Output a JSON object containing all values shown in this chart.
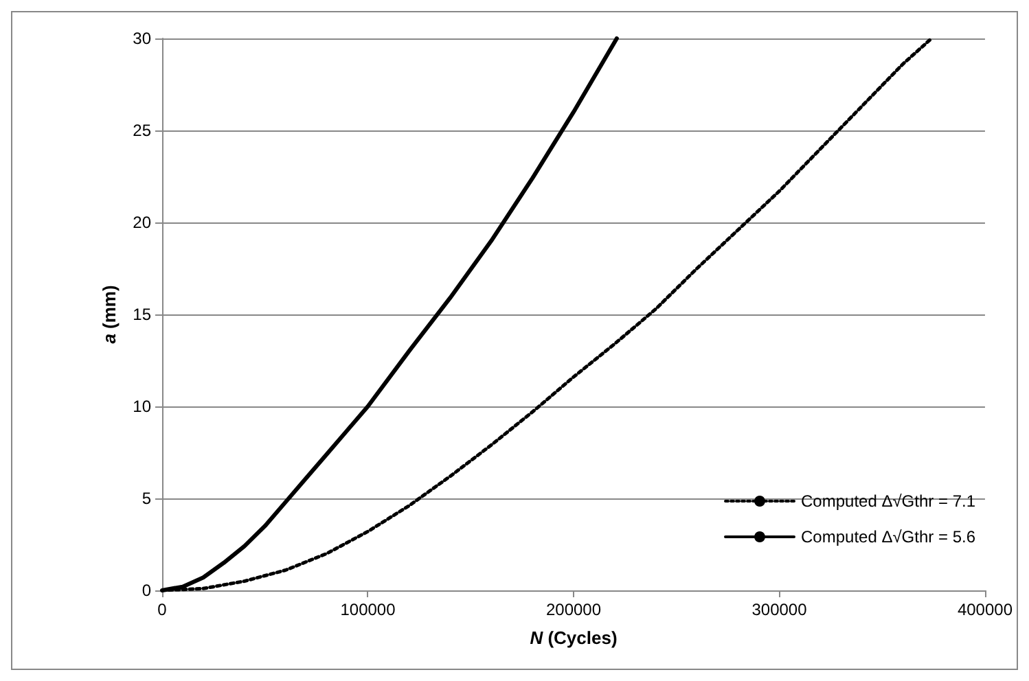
{
  "chart_data": {
    "type": "line",
    "xlabel": "N (Cycles)",
    "ylabel": "a (mm)",
    "xlim": [
      0,
      400000
    ],
    "xticks": [
      0,
      100000,
      200000,
      300000,
      400000
    ],
    "ylim": [
      0,
      30
    ],
    "yticks": [
      0,
      5,
      10,
      15,
      20,
      25,
      30
    ],
    "grid": "y",
    "legend": "bottom right",
    "marker": "none",
    "series": [
      {
        "name": "Computed Δ√Gthr = 7.1",
        "color": "#000000",
        "line_style": "dotted",
        "x": [
          0,
          20000,
          40000,
          60000,
          80000,
          100000,
          120000,
          140000,
          160000,
          180000,
          200000,
          220000,
          240000,
          260000,
          280000,
          300000,
          320000,
          340000,
          360000,
          374000
        ],
        "values": [
          0,
          0.1,
          0.5,
          1.1,
          2,
          3.2,
          4.6,
          6.2,
          7.9,
          9.7,
          11.6,
          13.4,
          15.3,
          17.5,
          19.6,
          21.7,
          24,
          26.3,
          28.6,
          30
        ]
      },
      {
        "name": "Computed Δ√Gthr = 5.6",
        "color": "#000000",
        "line_style": "solid",
        "x": [
          0,
          10000,
          20000,
          30000,
          40000,
          50000,
          60000,
          70000,
          80000,
          90000,
          100000,
          120000,
          140000,
          160000,
          180000,
          200000,
          221000
        ],
        "values": [
          0,
          0.2,
          0.7,
          1.5,
          2.4,
          3.5,
          4.8,
          6.1,
          7.4,
          8.7,
          10,
          13,
          15.9,
          19,
          22.4,
          26,
          30
        ]
      }
    ]
  }
}
